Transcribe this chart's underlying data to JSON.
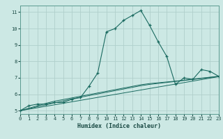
{
  "title": "",
  "xlabel": "Humidex (Indice chaleur)",
  "bg_color": "#cce8e4",
  "grid_color": "#b0d0cc",
  "line_color": "#1a6a60",
  "x_main": [
    0,
    1,
    2,
    3,
    4,
    5,
    6,
    7,
    8,
    9,
    10,
    11,
    12,
    13,
    14,
    15,
    16,
    17,
    18,
    19,
    20,
    21,
    22,
    23
  ],
  "y_main": [
    5.0,
    5.3,
    5.4,
    5.4,
    5.5,
    5.5,
    5.7,
    5.8,
    6.5,
    7.3,
    9.8,
    10.0,
    10.5,
    10.8,
    11.1,
    10.2,
    9.2,
    8.3,
    6.6,
    7.0,
    6.9,
    7.5,
    7.4,
    7.1
  ],
  "y_line1": [
    5.0,
    5.09,
    5.18,
    5.27,
    5.36,
    5.45,
    5.54,
    5.63,
    5.72,
    5.81,
    5.9,
    5.99,
    6.08,
    6.17,
    6.26,
    6.35,
    6.44,
    6.53,
    6.62,
    6.71,
    6.8,
    6.89,
    6.98,
    7.07
  ],
  "y_line2": [
    5.0,
    5.12,
    5.24,
    5.36,
    5.48,
    5.6,
    5.72,
    5.82,
    5.92,
    6.02,
    6.12,
    6.22,
    6.32,
    6.42,
    6.52,
    6.6,
    6.66,
    6.72,
    6.78,
    6.84,
    6.9,
    6.96,
    7.02,
    7.08
  ],
  "y_line3": [
    5.0,
    5.15,
    5.3,
    5.45,
    5.58,
    5.68,
    5.78,
    5.88,
    5.98,
    6.08,
    6.18,
    6.28,
    6.38,
    6.48,
    6.58,
    6.65,
    6.7,
    6.75,
    6.8,
    6.86,
    6.92,
    6.98,
    7.04,
    7.1
  ],
  "ylim": [
    4.8,
    11.4
  ],
  "xlim": [
    0,
    23
  ],
  "yticks": [
    5,
    6,
    7,
    8,
    9,
    10,
    11
  ],
  "xticks": [
    0,
    1,
    2,
    3,
    4,
    5,
    6,
    7,
    8,
    9,
    10,
    11,
    12,
    13,
    14,
    15,
    16,
    17,
    18,
    19,
    20,
    21,
    22,
    23
  ]
}
